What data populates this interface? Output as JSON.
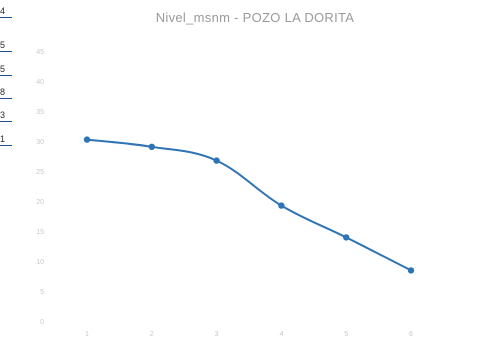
{
  "spreadsheet_edge": {
    "cells": [
      "4",
      "5",
      "5",
      "8",
      "3",
      "1"
    ]
  },
  "chart_data": {
    "type": "line",
    "title": "Nivel_msnm - POZO LA DORITA",
    "xlabel": "",
    "ylabel": "",
    "categories": [
      "1",
      "2",
      "3",
      "4",
      "5",
      "6"
    ],
    "series": [
      {
        "values": [
          30.4,
          29.2,
          26.9,
          19.4,
          14.1,
          8.6
        ],
        "color": "#2e74b5",
        "marker": "circle"
      }
    ],
    "ylim": [
      0,
      45
    ],
    "y_ticks": [
      "45",
      "40",
      "35",
      "30",
      "25",
      "20",
      "15",
      "10",
      "5",
      "0"
    ],
    "grid": false,
    "legend": "none"
  }
}
